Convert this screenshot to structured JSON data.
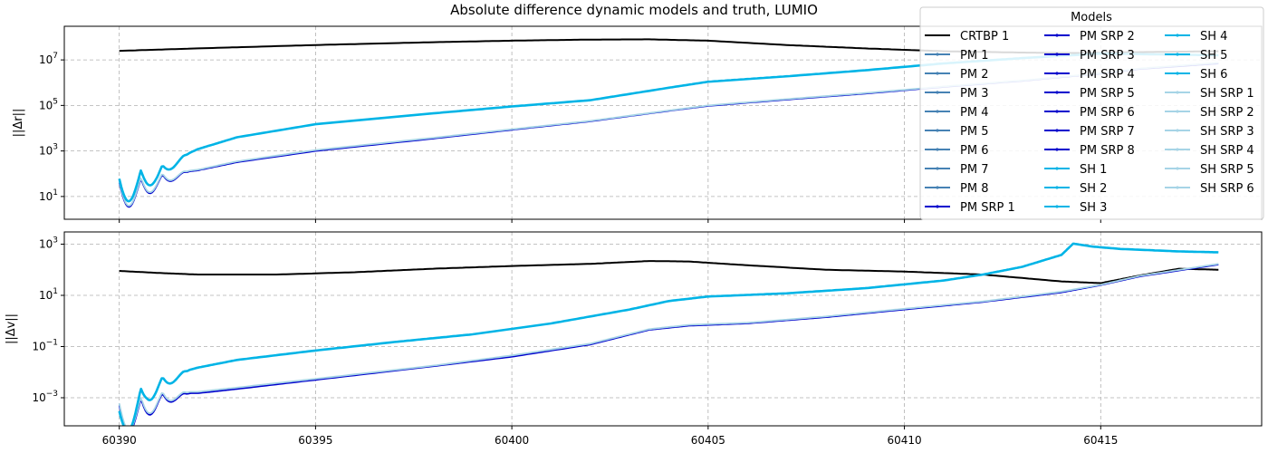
{
  "chart_data": {
    "type": "line",
    "title": "Absolute difference dynamic models and truth, LUMIO",
    "legend": {
      "title": "Models",
      "placement": "top-right",
      "entries": [
        {
          "label": "CRTBP 1",
          "color": "#000000"
        },
        {
          "label": "PM 1",
          "color": "#4682b4"
        },
        {
          "label": "PM 2",
          "color": "#4682b4"
        },
        {
          "label": "PM 3",
          "color": "#4682b4"
        },
        {
          "label": "PM 4",
          "color": "#4682b4"
        },
        {
          "label": "PM 5",
          "color": "#4682b4"
        },
        {
          "label": "PM 6",
          "color": "#4682b4"
        },
        {
          "label": "PM 7",
          "color": "#4682b4"
        },
        {
          "label": "PM 8",
          "color": "#4682b4"
        },
        {
          "label": "PM SRP 1",
          "color": "#0000cd"
        },
        {
          "label": "PM SRP 2",
          "color": "#0000cd"
        },
        {
          "label": "PM SRP 3",
          "color": "#0000cd"
        },
        {
          "label": "PM SRP 4",
          "color": "#0000cd"
        },
        {
          "label": "PM SRP 5",
          "color": "#0000cd"
        },
        {
          "label": "PM SRP 6",
          "color": "#0000cd"
        },
        {
          "label": "PM SRP 7",
          "color": "#0000cd"
        },
        {
          "label": "PM SRP 8",
          "color": "#0000cd"
        },
        {
          "label": "SH 1",
          "color": "#00b4e6"
        },
        {
          "label": "SH 2",
          "color": "#00b4e6"
        },
        {
          "label": "SH 3",
          "color": "#00b4e6"
        },
        {
          "label": "SH 4",
          "color": "#00b4e6"
        },
        {
          "label": "SH 5",
          "color": "#00b4e6"
        },
        {
          "label": "SH 6",
          "color": "#00b4e6"
        },
        {
          "label": "SH SRP 1",
          "color": "#a6d4e6"
        },
        {
          "label": "SH SRP 2",
          "color": "#a6d4e6"
        },
        {
          "label": "SH SRP 3",
          "color": "#a6d4e6"
        },
        {
          "label": "SH SRP 4",
          "color": "#a6d4e6"
        },
        {
          "label": "SH SRP 5",
          "color": "#a6d4e6"
        },
        {
          "label": "SH SRP 6",
          "color": "#a6d4e6"
        }
      ]
    },
    "xlim": [
      60388.6,
      60419.1
    ],
    "x_ticks": [
      60390,
      60395,
      60400,
      60405,
      60410,
      60415
    ],
    "grid": true,
    "panels": [
      {
        "ylabel": "||Δr||",
        "yscale": "log",
        "ylim": [
          1,
          300000000
        ],
        "y_ticks": [
          {
            "value": 10,
            "label": "10^1"
          },
          {
            "value": 1000,
            "label": "10^3"
          },
          {
            "value": 100000,
            "label": "10^5"
          },
          {
            "value": 10000000,
            "label": "10^7"
          }
        ],
        "series": [
          {
            "group": "CRTBP",
            "color": "#000000",
            "x": [
              60390,
              60392,
              60395,
              60398,
              60400,
              60402,
              60403.5,
              60405,
              60407,
              60409,
              60411,
              60413,
              60414.5,
              60416,
              60418
            ],
            "y": [
              25000000,
              32000000,
              45000000,
              60000000,
              70000000,
              78000000,
              80000000,
              70000000,
              45000000,
              32000000,
              24000000,
              21000000,
              20000000,
              22000000,
              24000000
            ]
          },
          {
            "group": "SH",
            "color": "#00b4e6",
            "osc": true,
            "x": [
              60390,
              60390.6,
              60391,
              60392,
              60393,
              60395,
              60398,
              60400,
              60402,
              60404,
              60405,
              60407,
              60409,
              60411,
              60413,
              60415,
              60416,
              60418
            ],
            "y": [
              60,
              150,
              200,
              1200,
              4000,
              15000,
              45000,
              90000,
              170000,
              600000,
              1100000,
              1900000,
              3500000,
              7000000,
              12000000,
              19000000,
              18000000,
              16000000
            ]
          },
          {
            "group": "PM SRP",
            "color": "#0000cd",
            "osc": true,
            "x": [
              60390,
              60391,
              60392,
              60393,
              60395,
              60398,
              60400,
              60402,
              60404,
              60405,
              60407,
              60409,
              60411,
              60413,
              60415,
              60416,
              60418
            ],
            "y": [
              40,
              90,
              140,
              320,
              1000,
              3500,
              8500,
              20000,
              58000,
              95000,
              180000,
              330000,
              650000,
              1200000,
              2500000,
              4000000,
              7000000
            ]
          },
          {
            "group": "SH SRP",
            "color": "#a6d4e6",
            "osc": true,
            "x": [
              60390,
              60391,
              60392,
              60393,
              60395,
              60398,
              60400,
              60402,
              60404,
              60405,
              60407,
              60409,
              60411,
              60413,
              60415,
              60416,
              60418
            ],
            "y": [
              45,
              100,
              150,
              350,
              1100,
              3800,
              9000,
              21000,
              60000,
              100000,
              190000,
              350000,
              680000,
              1250000,
              2600000,
              4200000,
              7500000
            ]
          }
        ]
      },
      {
        "ylabel": "||Δv||",
        "yscale": "log",
        "ylim": [
          8e-05,
          3000
        ],
        "y_ticks": [
          {
            "value": 0.001,
            "label": "10^-3"
          },
          {
            "value": 0.1,
            "label": "10^-1"
          },
          {
            "value": 10,
            "label": "10^1"
          },
          {
            "value": 1000,
            "label": "10^3"
          }
        ],
        "series": [
          {
            "group": "CRTBP",
            "color": "#000000",
            "x": [
              60390,
              60391,
              60392,
              60394,
              60396,
              60398,
              60400,
              60402,
              60403.5,
              60404.5,
              60406,
              60408,
              60410,
              60412,
              60414,
              60415,
              60416,
              60417,
              60418
            ],
            "y": [
              90,
              75,
              65,
              65,
              80,
              110,
              140,
              170,
              220,
              210,
              150,
              100,
              85,
              65,
              35,
              30,
              60,
              110,
              100
            ]
          },
          {
            "group": "SH",
            "color": "#00b4e6",
            "osc": true,
            "x": [
              60390,
              60390.7,
              60391,
              60392,
              60393,
              60395,
              60397,
              60399,
              60401,
              60403,
              60404,
              60405,
              60407,
              60409,
              60411,
              60412,
              60413,
              60414,
              60414.3,
              60414.8,
              60415.5,
              60417,
              60418
            ],
            "y": [
              0.0003,
              0.004,
              0.006,
              0.015,
              0.03,
              0.07,
              0.15,
              0.3,
              0.8,
              2.8,
              6,
              9,
              12,
              19,
              38,
              65,
              130,
              380,
              1050,
              800,
              650,
              520,
              480
            ]
          },
          {
            "group": "PM SRP",
            "color": "#0000cd",
            "osc": true,
            "x": [
              60390,
              60391,
              60392,
              60393,
              60395,
              60398,
              60400,
              60402,
              60403.5,
              60404.5,
              60406,
              60408,
              60410,
              60412,
              60414,
              60415,
              60416,
              60418
            ],
            "y": [
              0.0005,
              0.0015,
              0.0015,
              0.0022,
              0.005,
              0.017,
              0.04,
              0.12,
              0.45,
              0.65,
              0.8,
              1.4,
              2.8,
              5.5,
              13,
              25,
              55,
              160
            ]
          },
          {
            "group": "SH SRP",
            "color": "#a6d4e6",
            "osc": true,
            "x": [
              60390,
              60391,
              60392,
              60393,
              60395,
              60398,
              60400,
              60402,
              60403.5,
              60404.5,
              60406,
              60408,
              60410,
              60412,
              60414,
              60415,
              60416,
              60418
            ],
            "y": [
              0.0006,
              0.0017,
              0.0017,
              0.0025,
              0.0055,
              0.018,
              0.045,
              0.13,
              0.48,
              0.7,
              0.85,
              1.5,
              3,
              5.8,
              14,
              26,
              58,
              170
            ]
          }
        ]
      }
    ]
  }
}
